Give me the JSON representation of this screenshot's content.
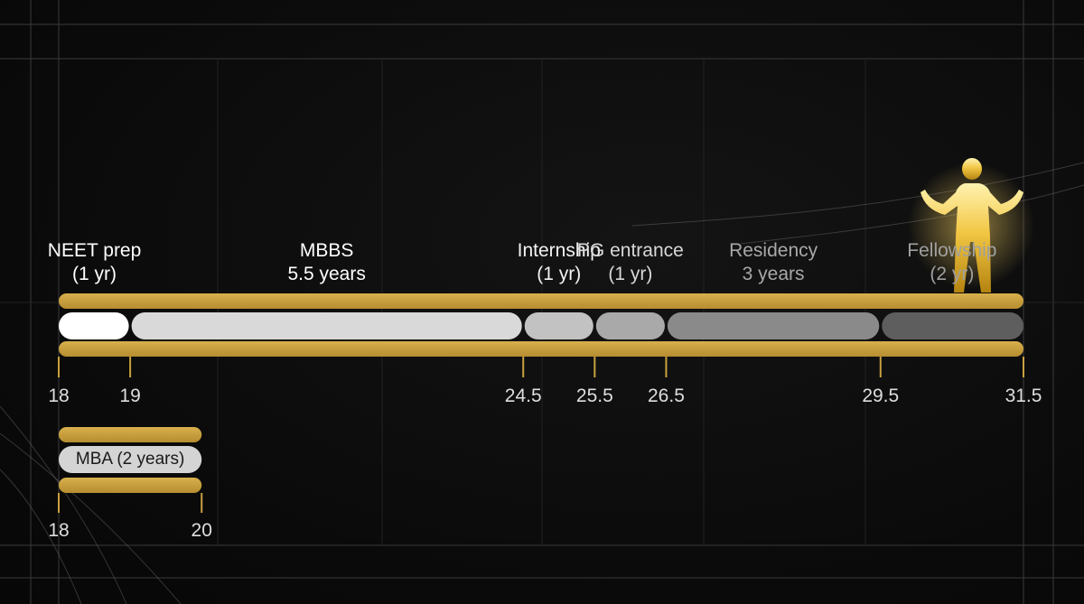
{
  "main_timeline": {
    "domain": [
      18,
      31.5
    ],
    "segments": [
      {
        "id": "neet",
        "start": 18,
        "end": 19,
        "line1": "NEET prep",
        "line2": "(1 yr)",
        "fill": "#ffffff",
        "label_color": "#ffffff"
      },
      {
        "id": "mbbs",
        "start": 19,
        "end": 24.5,
        "line1": "MBBS",
        "line2": "5.5 years",
        "fill": "#d9d9d9",
        "label_color": "#ffffff"
      },
      {
        "id": "internship",
        "start": 24.5,
        "end": 25.5,
        "line1": "Internship",
        "line2": "(1 yr)",
        "fill": "#c2c2c2",
        "label_color": "#f2f2f2"
      },
      {
        "id": "pg-entrance",
        "start": 25.5,
        "end": 26.5,
        "line1": "PG entrance",
        "line2": "(1 yr)",
        "fill": "#a9a9a9",
        "label_color": "#d8d8d8"
      },
      {
        "id": "residency",
        "start": 26.5,
        "end": 29.5,
        "line1": "Residency",
        "line2": "3 years",
        "fill": "#8a8a8a",
        "label_color": "#a8a8a8"
      },
      {
        "id": "fellowship",
        "start": 29.5,
        "end": 31.5,
        "line1": "Fellowship",
        "line2": "(2 yr)",
        "fill": "#5e5e5e",
        "label_color": "#a0a0a0"
      }
    ],
    "ticks": [
      {
        "value": 18,
        "label": "18"
      },
      {
        "value": 19,
        "label": "19"
      },
      {
        "value": 24.5,
        "label": "24.5"
      },
      {
        "value": 25.5,
        "label": "25.5"
      },
      {
        "value": 26.5,
        "label": "26.5"
      },
      {
        "value": 29.5,
        "label": "29.5"
      },
      {
        "value": 31.5,
        "label": "31.5"
      }
    ]
  },
  "alt_timeline": {
    "start": 18,
    "end": 20,
    "label": "MBA (2 years)",
    "fill": "#d4d4d4",
    "ticks": [
      {
        "value": 18,
        "label": "18"
      },
      {
        "value": 20,
        "label": "20"
      }
    ]
  },
  "colors": {
    "gold": "#c9a13f",
    "gold_light": "#e6c15a",
    "background": "#0b0b0b",
    "grid": "#3a3a3a"
  },
  "icons": {
    "figure": "person-celebrating-icon"
  }
}
